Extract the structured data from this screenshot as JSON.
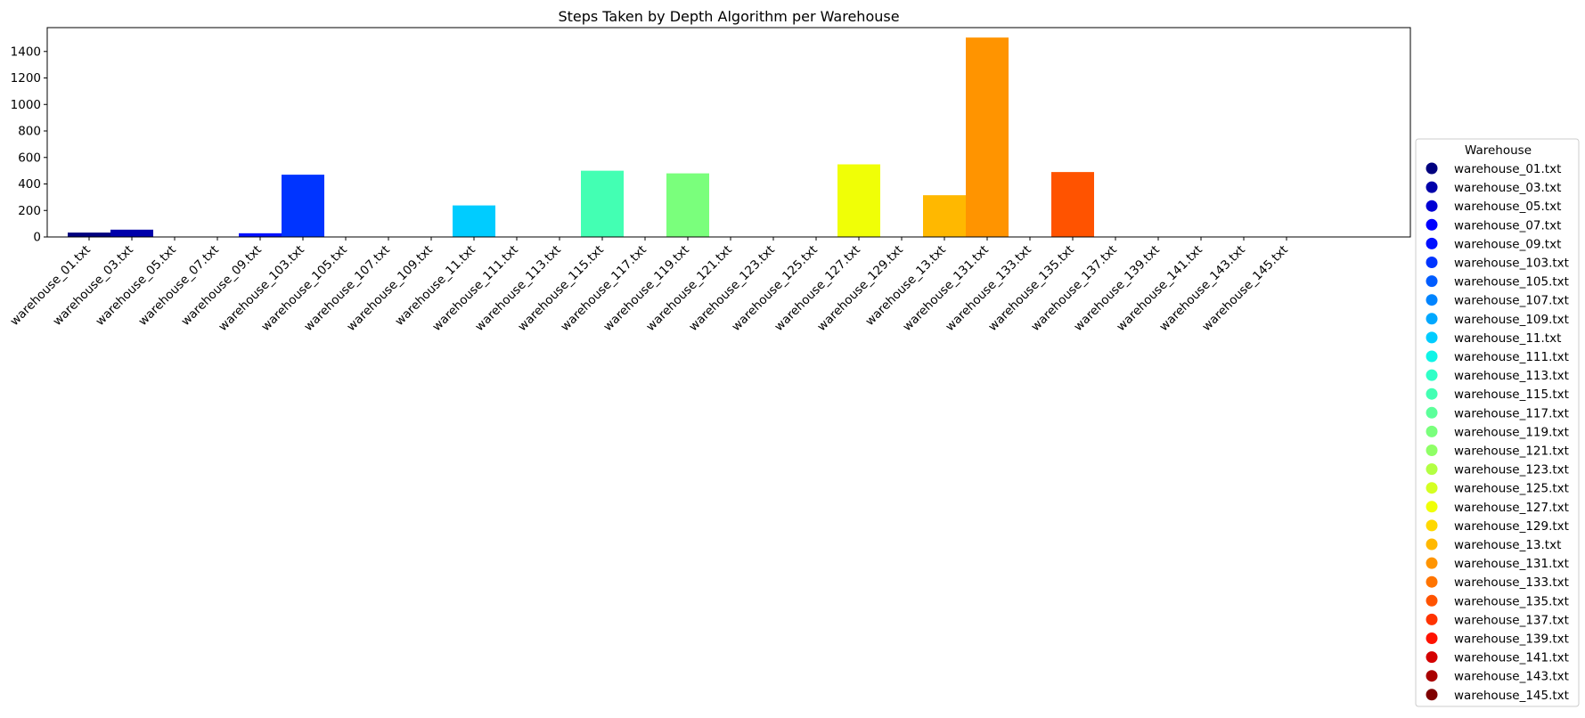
{
  "chart_data": {
    "type": "bar",
    "title": "Steps Taken by Depth Algorithm per Warehouse",
    "xlabel": "",
    "ylabel": "",
    "ylim": [
      0,
      1580
    ],
    "yticks": [
      0,
      200,
      400,
      600,
      800,
      1000,
      1200,
      1400
    ],
    "grid": false,
    "legend": {
      "title": "Warehouse",
      "placement": "right"
    },
    "categories": [
      "warehouse_01.txt",
      "warehouse_03.txt",
      "warehouse_05.txt",
      "warehouse_07.txt",
      "warehouse_09.txt",
      "warehouse_103.txt",
      "warehouse_105.txt",
      "warehouse_107.txt",
      "warehouse_109.txt",
      "warehouse_11.txt",
      "warehouse_111.txt",
      "warehouse_113.txt",
      "warehouse_115.txt",
      "warehouse_117.txt",
      "warehouse_119.txt",
      "warehouse_121.txt",
      "warehouse_123.txt",
      "warehouse_125.txt",
      "warehouse_127.txt",
      "warehouse_129.txt",
      "warehouse_13.txt",
      "warehouse_131.txt",
      "warehouse_133.txt",
      "warehouse_135.txt",
      "warehouse_137.txt",
      "warehouse_139.txt",
      "warehouse_141.txt",
      "warehouse_143.txt",
      "warehouse_145.txt"
    ],
    "values": [
      33,
      55,
      0,
      0,
      28,
      470,
      0,
      0,
      0,
      238,
      0,
      0,
      500,
      0,
      480,
      0,
      0,
      0,
      548,
      0,
      315,
      1505,
      0,
      490,
      0,
      0,
      0,
      0,
      0
    ],
    "colors": [
      "#00007f",
      "#0000aa",
      "#0000d4",
      "#0000ff",
      "#0010ff",
      "#0034ff",
      "#005cff",
      "#0084ff",
      "#00a8ff",
      "#00ccff",
      "#0ff4e7",
      "#2fffc7",
      "#43ffb3",
      "#5cff9a",
      "#7aff7c",
      "#8fff66",
      "#b3ff43",
      "#d4ff22",
      "#f0ff06",
      "#ffd800",
      "#ffb800",
      "#ff9400",
      "#ff7400",
      "#ff5300",
      "#ff3300",
      "#ff1200",
      "#d40000",
      "#aa0000",
      "#7f0000"
    ]
  }
}
